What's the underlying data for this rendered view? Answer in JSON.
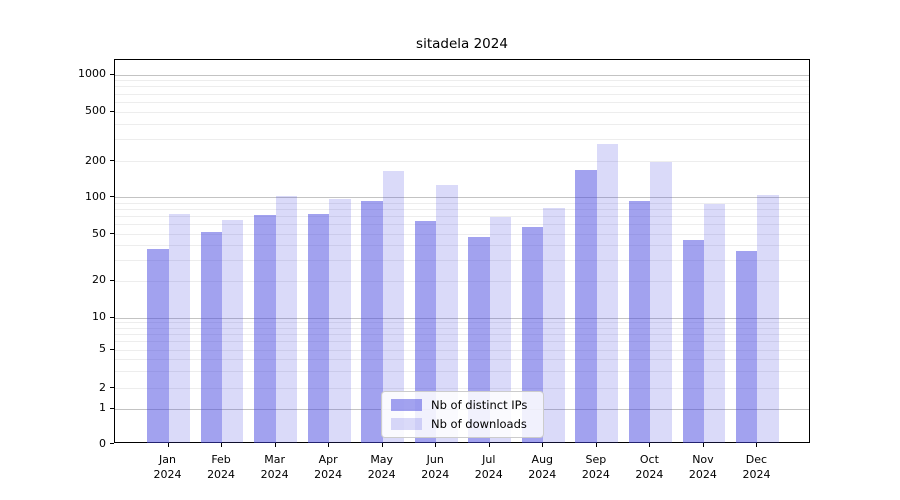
{
  "chart_data": {
    "type": "bar",
    "title": "sitadela 2024",
    "categories": [
      "Jan 2024",
      "Feb 2024",
      "Mar 2024",
      "Apr 2024",
      "May 2024",
      "Jun 2024",
      "Jul 2024",
      "Aug 2024",
      "Sep 2024",
      "Oct 2024",
      "Nov 2024",
      "Dec 2024"
    ],
    "series": [
      {
        "name": "Nb of distinct IPs",
        "color": "rgba(70,70,223,0.5)",
        "values": [
          37,
          52,
          72,
          73,
          93,
          64,
          47,
          57,
          168,
          93,
          44,
          36
        ]
      },
      {
        "name": "Nb of downloads",
        "color": "rgba(70,70,223,0.2)",
        "values": [
          73,
          65,
          103,
          97,
          166,
          127,
          69,
          82,
          276,
          195,
          88,
          105
        ]
      }
    ],
    "xlabel": "",
    "ylabel": "",
    "yscale": "symlog",
    "y_ticks": [
      0,
      1,
      2,
      5,
      10,
      20,
      50,
      100,
      200,
      500,
      1000
    ],
    "ylim": [
      0,
      1300
    ],
    "grid": "both",
    "legend_position": "bottom-center",
    "colors": {
      "bar_dark": "rgba(70,70,223,0.5)",
      "bar_light": "rgba(70,70,223,0.2)",
      "grid_minor": "#ededed",
      "grid_major": "#c3c3c3",
      "spine": "#000000"
    }
  }
}
